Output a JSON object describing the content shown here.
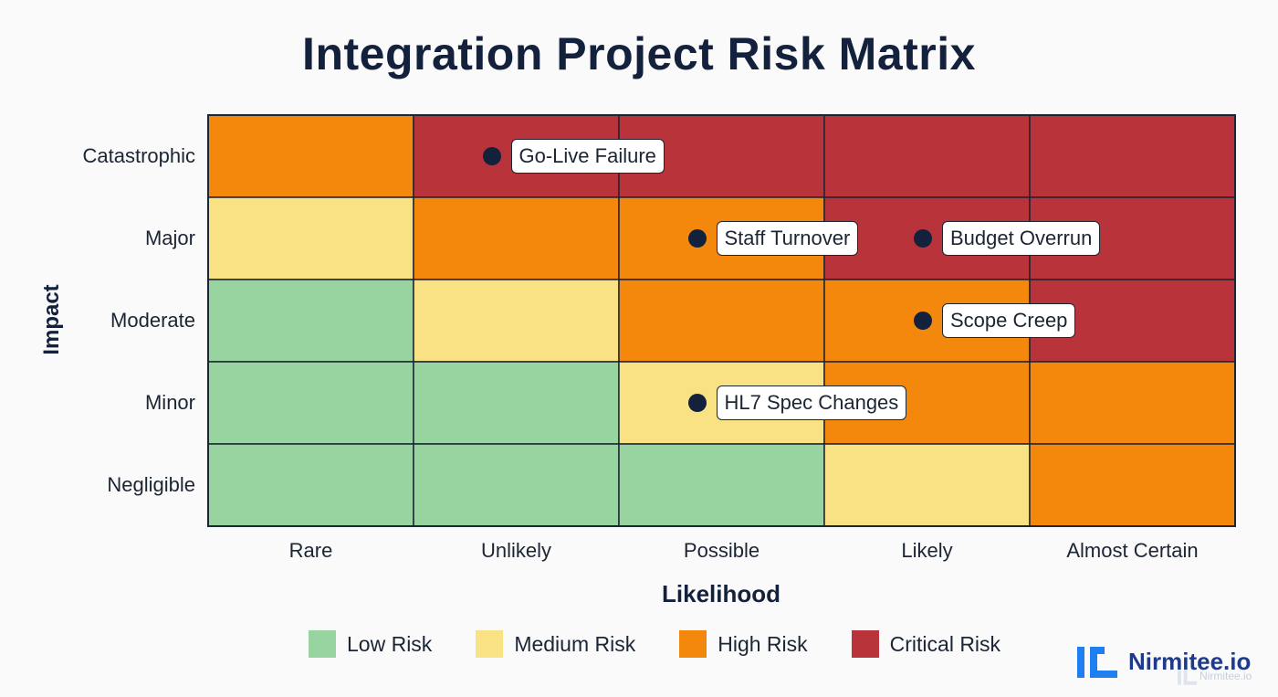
{
  "chart_data": {
    "type": "heatmap",
    "title": "Integration Project Risk Matrix",
    "xlabel": "Likelihood",
    "ylabel": "Impact",
    "x_categories": [
      "Rare",
      "Unlikely",
      "Possible",
      "Likely",
      "Almost Certain"
    ],
    "y_categories": [
      "Catastrophic",
      "Major",
      "Moderate",
      "Minor",
      "Negligible"
    ],
    "cells": [
      [
        "high",
        "critical",
        "critical",
        "critical",
        "critical"
      ],
      [
        "medium",
        "high",
        "high",
        "critical",
        "critical"
      ],
      [
        "low",
        "medium",
        "high",
        "high",
        "critical"
      ],
      [
        "low",
        "low",
        "medium",
        "high",
        "high"
      ],
      [
        "low",
        "low",
        "low",
        "medium",
        "high"
      ]
    ],
    "risks": [
      {
        "label": "Go-Live Failure",
        "x": 1.38,
        "y": 4
      },
      {
        "label": "Staff Turnover",
        "x": 2.38,
        "y": 3
      },
      {
        "label": "Budget Overrun",
        "x": 3.48,
        "y": 3
      },
      {
        "label": "Scope Creep",
        "x": 3.48,
        "y": 2
      },
      {
        "label": "HL7 Spec Changes",
        "x": 2.38,
        "y": 1
      }
    ],
    "legend": {
      "placement": "bottom",
      "items": [
        {
          "key": "low",
          "label": "Low Risk",
          "color": "#98d49f"
        },
        {
          "key": "medium",
          "label": "Medium Risk",
          "color": "#f9e283"
        },
        {
          "key": "high",
          "label": "High Risk",
          "color": "#f4880d"
        },
        {
          "key": "critical",
          "label": "Critical Risk",
          "color": "#b9333a"
        }
      ]
    },
    "grid": true
  },
  "brand": {
    "name": "Nirmitee.io",
    "ghost_text": "Nirmitee.io"
  },
  "colors": {
    "title": "#14213d",
    "marker": "#14213d",
    "brand_blue": "#1d7ff0"
  }
}
